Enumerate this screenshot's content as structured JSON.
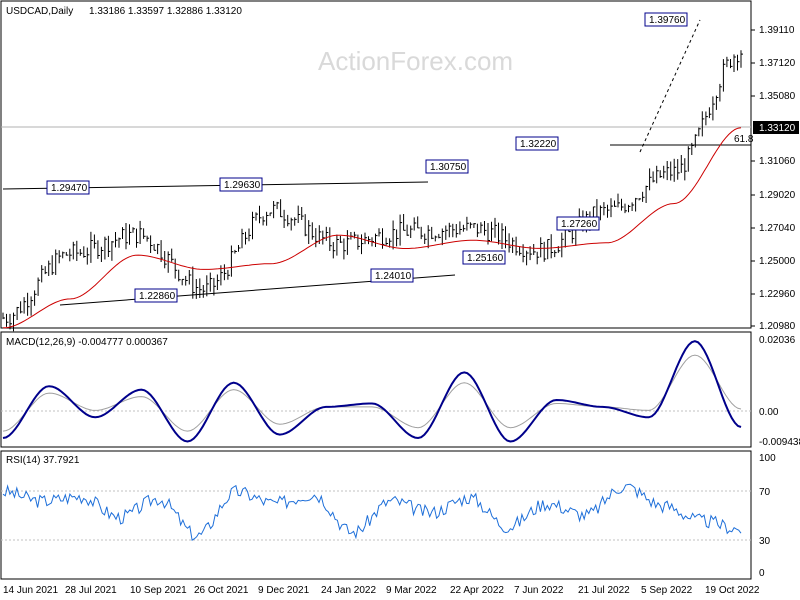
{
  "header": {
    "symbol": "USDCAD,Daily",
    "ohlc": "1.33186 1.33597 1.32886 1.33120"
  },
  "watermark": "ActionForex.com",
  "colors": {
    "price": "#000000",
    "ema": "#cc0000",
    "macd": "#00008b",
    "signal": "#a0a0a0",
    "rsi": "#1e6fd9",
    "grid": "#c0c0c0"
  },
  "price_panel": {
    "y_ticks": [
      "1.39110",
      "1.37120",
      "1.35080",
      "1.33120",
      "1.31060",
      "1.29020",
      "1.27040",
      "1.25000",
      "1.22960",
      "1.20980"
    ],
    "current_price_label": "1.33120",
    "fib_label": "61.8",
    "annotations": [
      "1.39760",
      "1.32220",
      "1.30750",
      "1.29470",
      "1.29630",
      "1.27260",
      "1.25160",
      "1.24010",
      "1.22860"
    ]
  },
  "macd_panel": {
    "title": "MACD(12,26,9) -0.004777 0.000367",
    "y_ticks": [
      "0.02036",
      "0.00",
      "-0.009438"
    ]
  },
  "rsi_panel": {
    "title": "RSI(14) 37.7921",
    "y_ticks": [
      "100",
      "70",
      "30",
      "0"
    ]
  },
  "x_ticks": [
    "14 Jun 2021",
    "28 Jul 2021",
    "10 Sep 2021",
    "26 Oct 2021",
    "9 Dec 2021",
    "24 Jan 2022",
    "9 Mar 2022",
    "22 Apr 2022",
    "7 Jun 2022",
    "21 Jul 2022",
    "5 Sep 2022",
    "19 Oct 2022"
  ],
  "chart_data": [
    {
      "type": "line",
      "title": "USDCAD,Daily",
      "x": [
        "14 Jun 2021",
        "28 Jul 2021",
        "10 Sep 2021",
        "26 Oct 2021",
        "9 Dec 2021",
        "24 Jan 2022",
        "9 Mar 2022",
        "22 Apr 2022",
        "7 Jun 2022",
        "21 Jul 2022",
        "5 Sep 2022",
        "19 Oct 2022"
      ],
      "series": [
        {
          "name": "USDCAD",
          "values": [
            1.215,
            1.256,
            1.268,
            1.233,
            1.284,
            1.262,
            1.27,
            1.272,
            1.258,
            1.283,
            1.308,
            1.385
          ]
        }
      ],
      "current": 1.3312,
      "pivots": [
        {
          "x": "2021-06-18",
          "y": 1.2286
        },
        {
          "x": "2021-08-20",
          "y": 1.2947
        },
        {
          "x": "2021-12-20",
          "y": 1.2963
        },
        {
          "x": "2022-03-29",
          "y": 1.2401
        },
        {
          "x": "2022-04-28",
          "y": 1.3075
        },
        {
          "x": "2022-05-31",
          "y": 1.2516
        },
        {
          "x": "2022-07-14",
          "y": 1.3222
        },
        {
          "x": "2022-08-10",
          "y": 1.2726
        },
        {
          "x": "2022-10-13",
          "y": 1.3976
        }
      ],
      "ylim": [
        1.2098,
        1.405
      ]
    },
    {
      "type": "line",
      "title": "MACD(12,26,9) -0.004777 0.000367",
      "series": [
        {
          "name": "MACD",
          "values": [
            -0.008,
            0.007,
            -0.002,
            0.006,
            -0.009,
            0.008,
            -0.007,
            0.001,
            0.002,
            -0.008,
            0.011,
            -0.009,
            0.003,
            0.001,
            -0.002,
            0.02,
            -0.0048
          ]
        },
        {
          "name": "Signal",
          "values": [
            -0.006,
            0.005,
            0.0,
            0.004,
            -0.006,
            0.006,
            -0.004,
            0.001,
            0.001,
            -0.005,
            0.008,
            -0.005,
            0.002,
            0.001,
            0.0,
            0.016,
            0.0004
          ]
        }
      ],
      "current": {
        "macd": -0.004777,
        "signal": 0.000367
      },
      "ylim": [
        -0.009438,
        0.02036
      ]
    },
    {
      "type": "line",
      "title": "RSI(14) 37.7921",
      "series": [
        {
          "name": "RSI",
          "values": [
            70,
            62,
            66,
            48,
            64,
            32,
            70,
            60,
            68,
            35,
            62,
            52,
            65,
            40,
            60,
            50,
            75,
            58,
            45,
            37.79
          ]
        }
      ],
      "current": 37.7921,
      "ylim": [
        0,
        100
      ]
    }
  ]
}
